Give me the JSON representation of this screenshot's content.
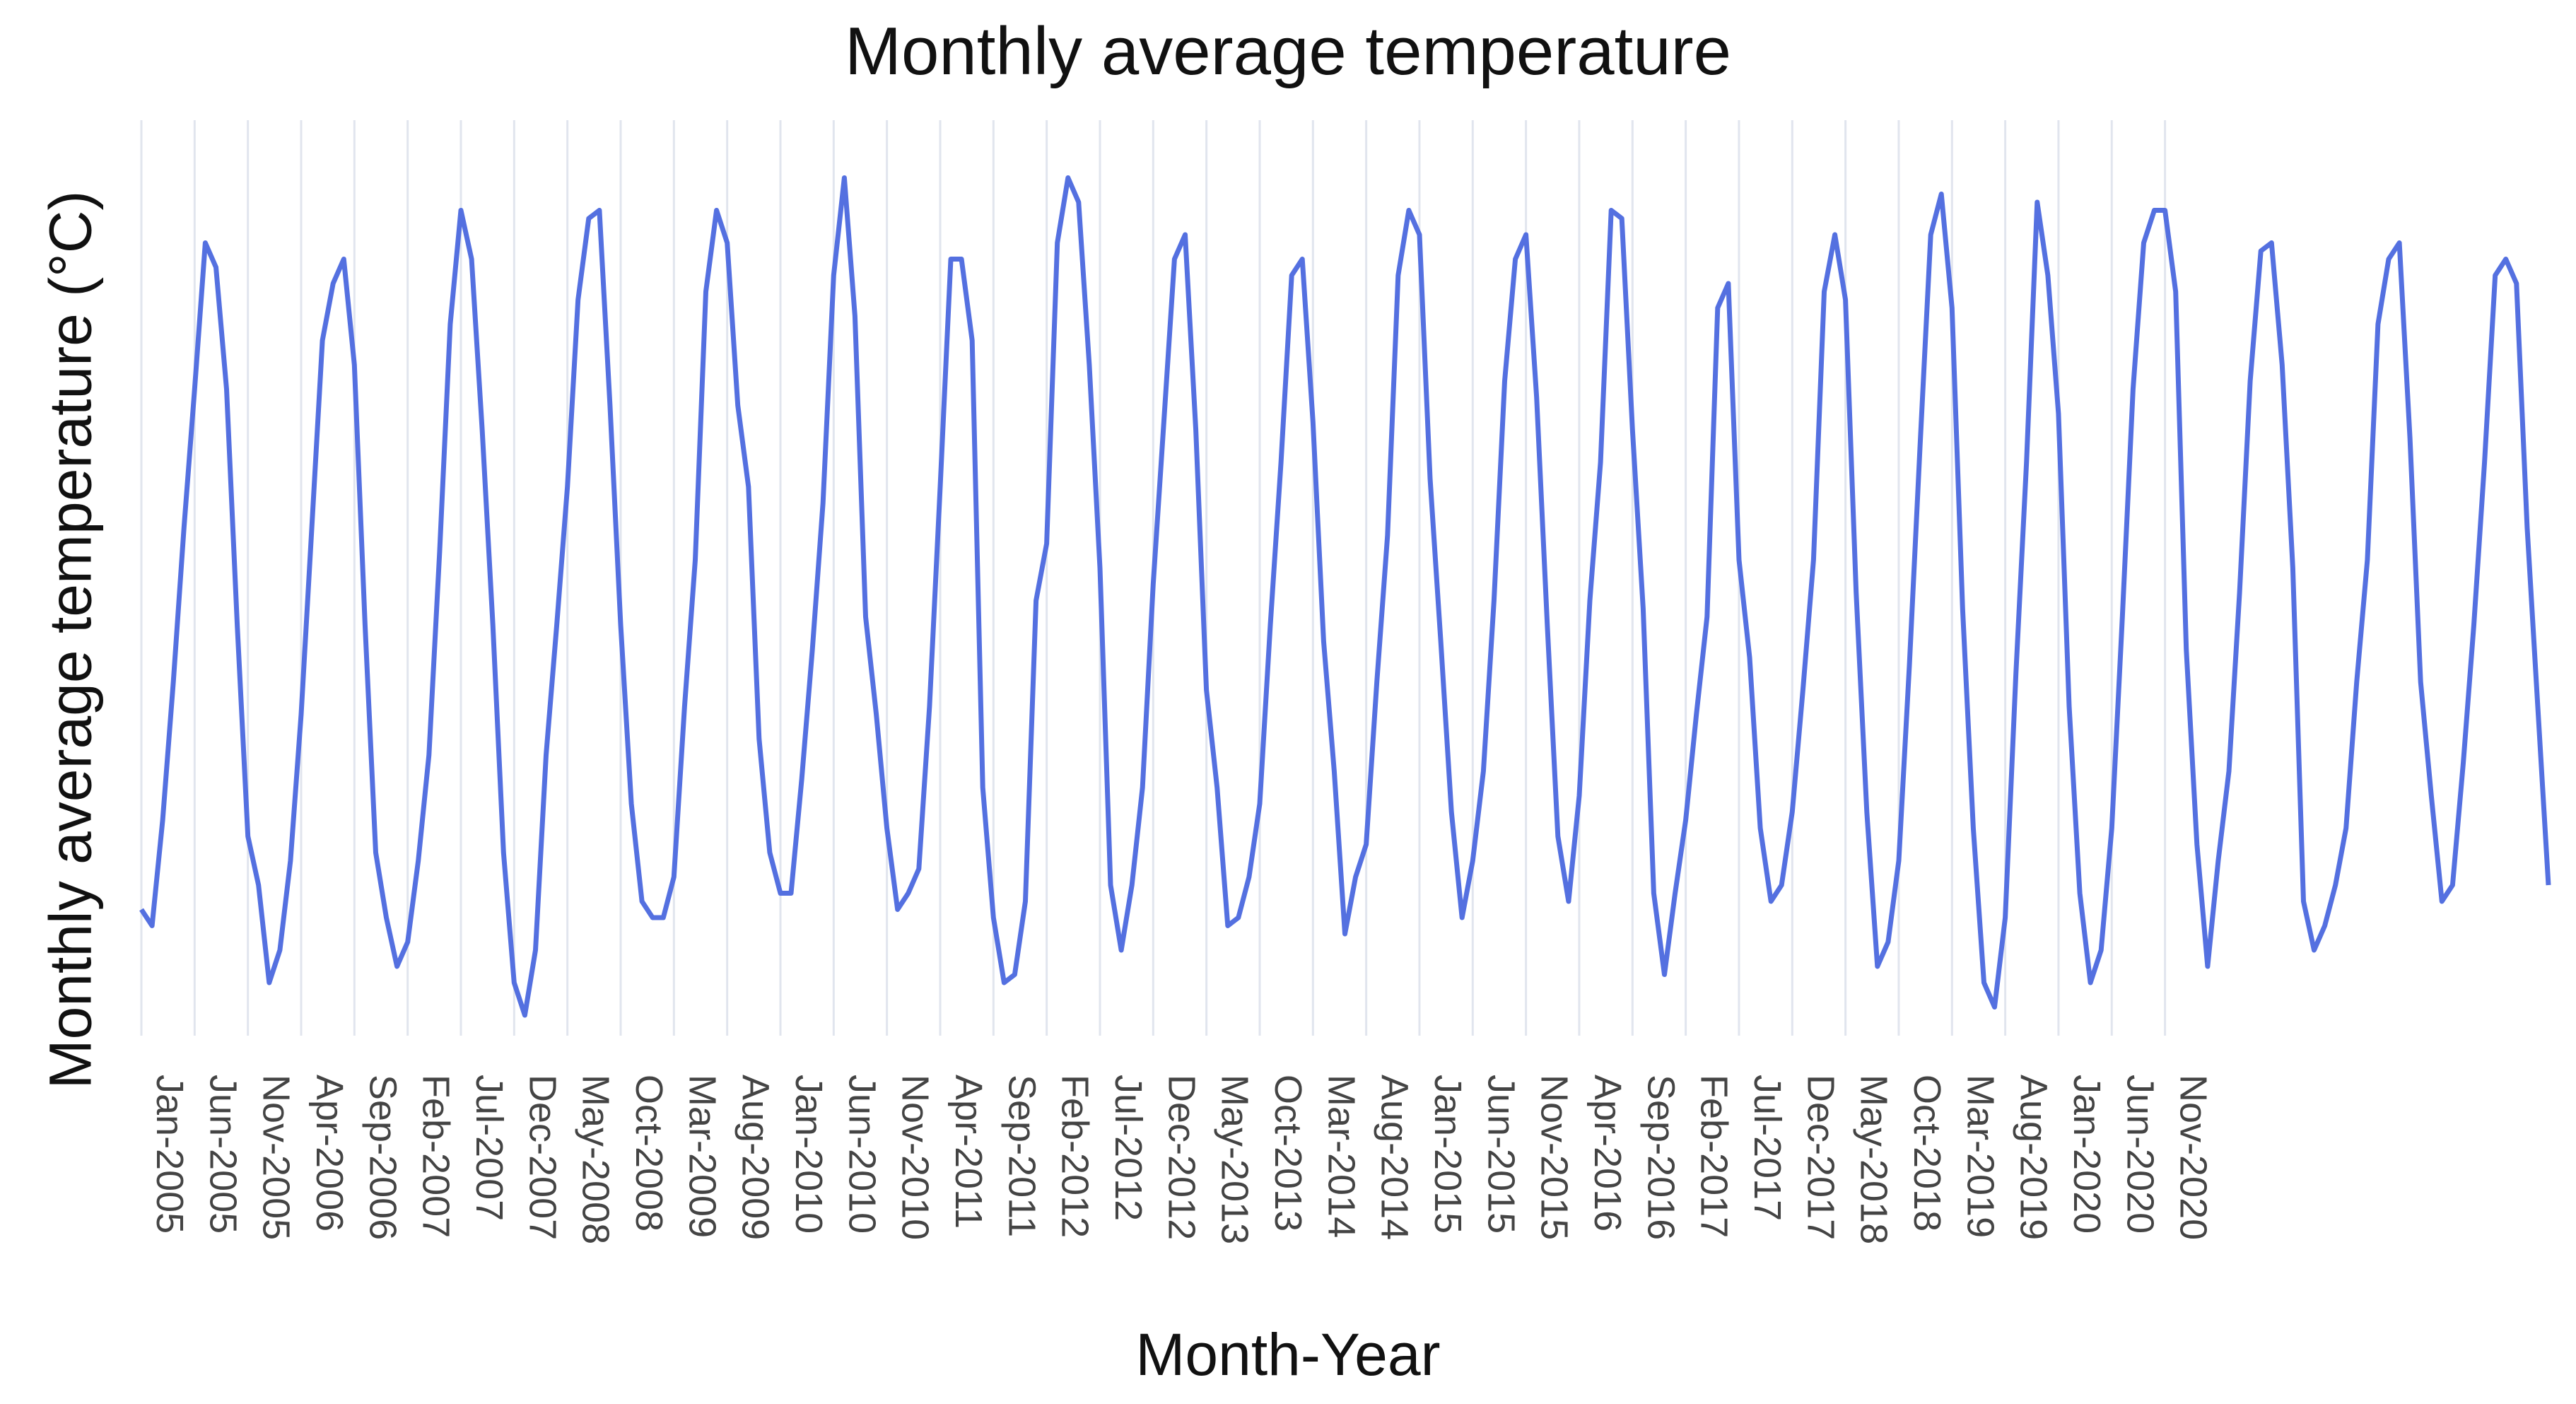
{
  "chart_data": {
    "type": "line",
    "title": "Monthly average temperature",
    "xlabel": "Month-Year",
    "ylabel": "Monthly average temperature (°C)",
    "y_ticks_shown": false,
    "grid": "vertical",
    "x_tick_step_months": 5,
    "x_tick_labels": [
      "Jan-2005",
      "Jun-2005",
      "Nov-2005",
      "Apr-2006",
      "Sep-2006",
      "Feb-2007",
      "Jul-2007",
      "Dec-2007",
      "May-2008",
      "Oct-2008",
      "Mar-2009",
      "Aug-2009",
      "Jan-2010",
      "Jun-2010",
      "Nov-2010",
      "Apr-2011",
      "Sep-2011",
      "Feb-2012",
      "Jul-2012",
      "Dec-2012",
      "May-2013",
      "Oct-2013",
      "Mar-2014",
      "Aug-2014",
      "Jan-2015",
      "Jun-2015",
      "Nov-2015",
      "Apr-2016",
      "Sep-2016",
      "Feb-2017",
      "Jul-2017",
      "Dec-2017",
      "May-2018",
      "Oct-2018",
      "Mar-2019",
      "Aug-2019",
      "Jan-2020",
      "Jun-2020",
      "Nov-2020"
    ],
    "ylim": [
      0,
      100
    ],
    "series": [
      {
        "name": "Monthly average temperature",
        "color": "#5470e0",
        "values": [
          9,
          7,
          20,
          37,
          56,
          73,
          91,
          88,
          73,
          44,
          18,
          12,
          0,
          4,
          15,
          33,
          56,
          79,
          86,
          89,
          76,
          44,
          16,
          8,
          2,
          5,
          15,
          28,
          53,
          81,
          95,
          89,
          68,
          44,
          16,
          0,
          -4,
          4,
          28,
          44,
          61,
          84,
          94,
          95,
          71,
          44,
          22,
          10,
          8,
          8,
          13,
          34,
          52,
          85,
          95,
          91,
          71,
          61,
          30,
          16,
          11,
          11,
          25,
          41,
          59,
          87,
          99,
          82,
          45,
          33,
          19,
          9,
          11,
          14,
          34,
          61,
          89,
          89,
          79,
          24,
          8,
          0,
          1,
          10,
          47,
          54,
          91,
          99,
          96,
          76,
          51,
          12,
          4,
          12,
          24,
          49,
          69,
          89,
          92,
          68,
          36,
          24,
          7,
          8,
          13,
          22,
          44,
          64,
          87,
          89,
          69,
          42,
          26,
          6,
          13,
          17,
          37,
          55,
          87,
          95,
          92,
          62,
          42,
          21,
          8,
          15,
          26,
          47,
          74,
          89,
          92,
          72,
          44,
          18,
          10,
          23,
          47,
          64,
          95,
          94,
          68,
          46,
          11,
          1,
          11,
          20,
          33,
          45,
          83,
          86,
          52,
          40,
          19,
          10,
          12,
          21,
          36,
          52,
          85,
          92,
          84,
          48,
          21,
          2,
          5,
          15,
          39,
          66,
          92,
          97,
          83,
          46,
          19,
          0,
          -3,
          8,
          38,
          64,
          96,
          87,
          70,
          34,
          11,
          0,
          4,
          19,
          45,
          73,
          91,
          95,
          95,
          85,
          41,
          17,
          2,
          15,
          26,
          48,
          74,
          90,
          91,
          76,
          51,
          10,
          4,
          7,
          12,
          19,
          37,
          52,
          81,
          89,
          91,
          67,
          37,
          23,
          10,
          12,
          27,
          44,
          64,
          87,
          89,
          86,
          56,
          34,
          12
        ]
      }
    ]
  }
}
